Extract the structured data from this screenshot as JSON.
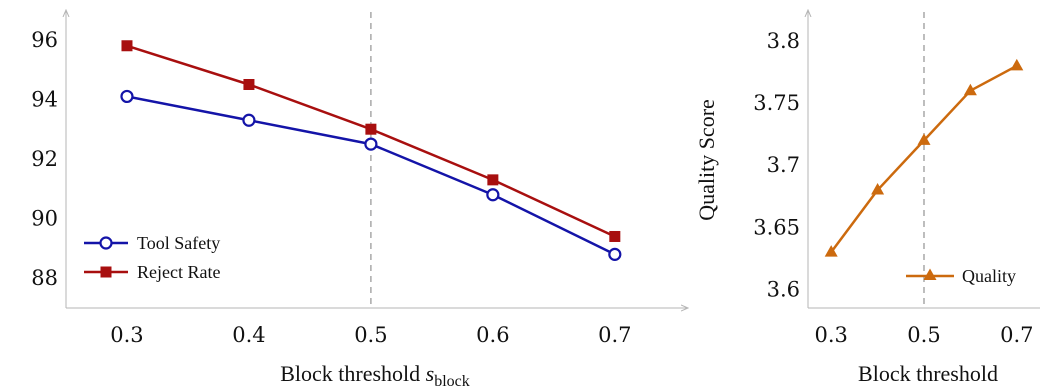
{
  "chart_data": [
    {
      "type": "line",
      "x": [
        0.3,
        0.4,
        0.5,
        0.6,
        0.7
      ],
      "xticks": [
        "0.3",
        "0.4",
        "0.5",
        "0.6",
        "0.7"
      ],
      "yticks": [
        "88",
        "90",
        "92",
        "94",
        "96"
      ],
      "xlabel_main": "Block threshold ",
      "xlabel_sym": "s",
      "xlabel_sub": "block",
      "ylabel": "",
      "xlim": [
        0.25,
        0.76
      ],
      "ylim": [
        87.0,
        97.0
      ],
      "reference_line_x": 0.5,
      "legend_position": "bottom-left",
      "series": [
        {
          "name": "Tool Safety",
          "values": [
            94.1,
            93.3,
            92.5,
            90.8,
            88.8
          ],
          "color": "#1414a8",
          "marker": "circle-open"
        },
        {
          "name": "Reject Rate",
          "values": [
            95.8,
            94.5,
            93.0,
            91.3,
            89.4
          ],
          "color": "#a80f0f",
          "marker": "square"
        }
      ]
    },
    {
      "type": "line",
      "x": [
        0.3,
        0.4,
        0.5,
        0.6,
        0.7
      ],
      "xticks": [
        "0.3",
        "0.5",
        "0.7"
      ],
      "xtick_values": [
        0.3,
        0.5,
        0.7
      ],
      "yticks": [
        "3.6",
        "3.65",
        "3.7",
        "3.75",
        "3.8"
      ],
      "ytick_values": [
        3.6,
        3.65,
        3.7,
        3.75,
        3.8
      ],
      "xlabel": "Block threshold",
      "ylabel": "Quality Score",
      "xlim": [
        0.25,
        0.75
      ],
      "ylim": [
        3.585,
        3.825
      ],
      "reference_line_x": 0.5,
      "legend_position": "bottom-right",
      "series": [
        {
          "name": "Quality",
          "values": [
            3.63,
            3.68,
            3.72,
            3.76,
            3.78
          ],
          "color": "#cc6a0e",
          "marker": "triangle"
        }
      ]
    }
  ],
  "colors": {
    "axis": "#b5b5b5",
    "refline": "#9a9a9a"
  }
}
